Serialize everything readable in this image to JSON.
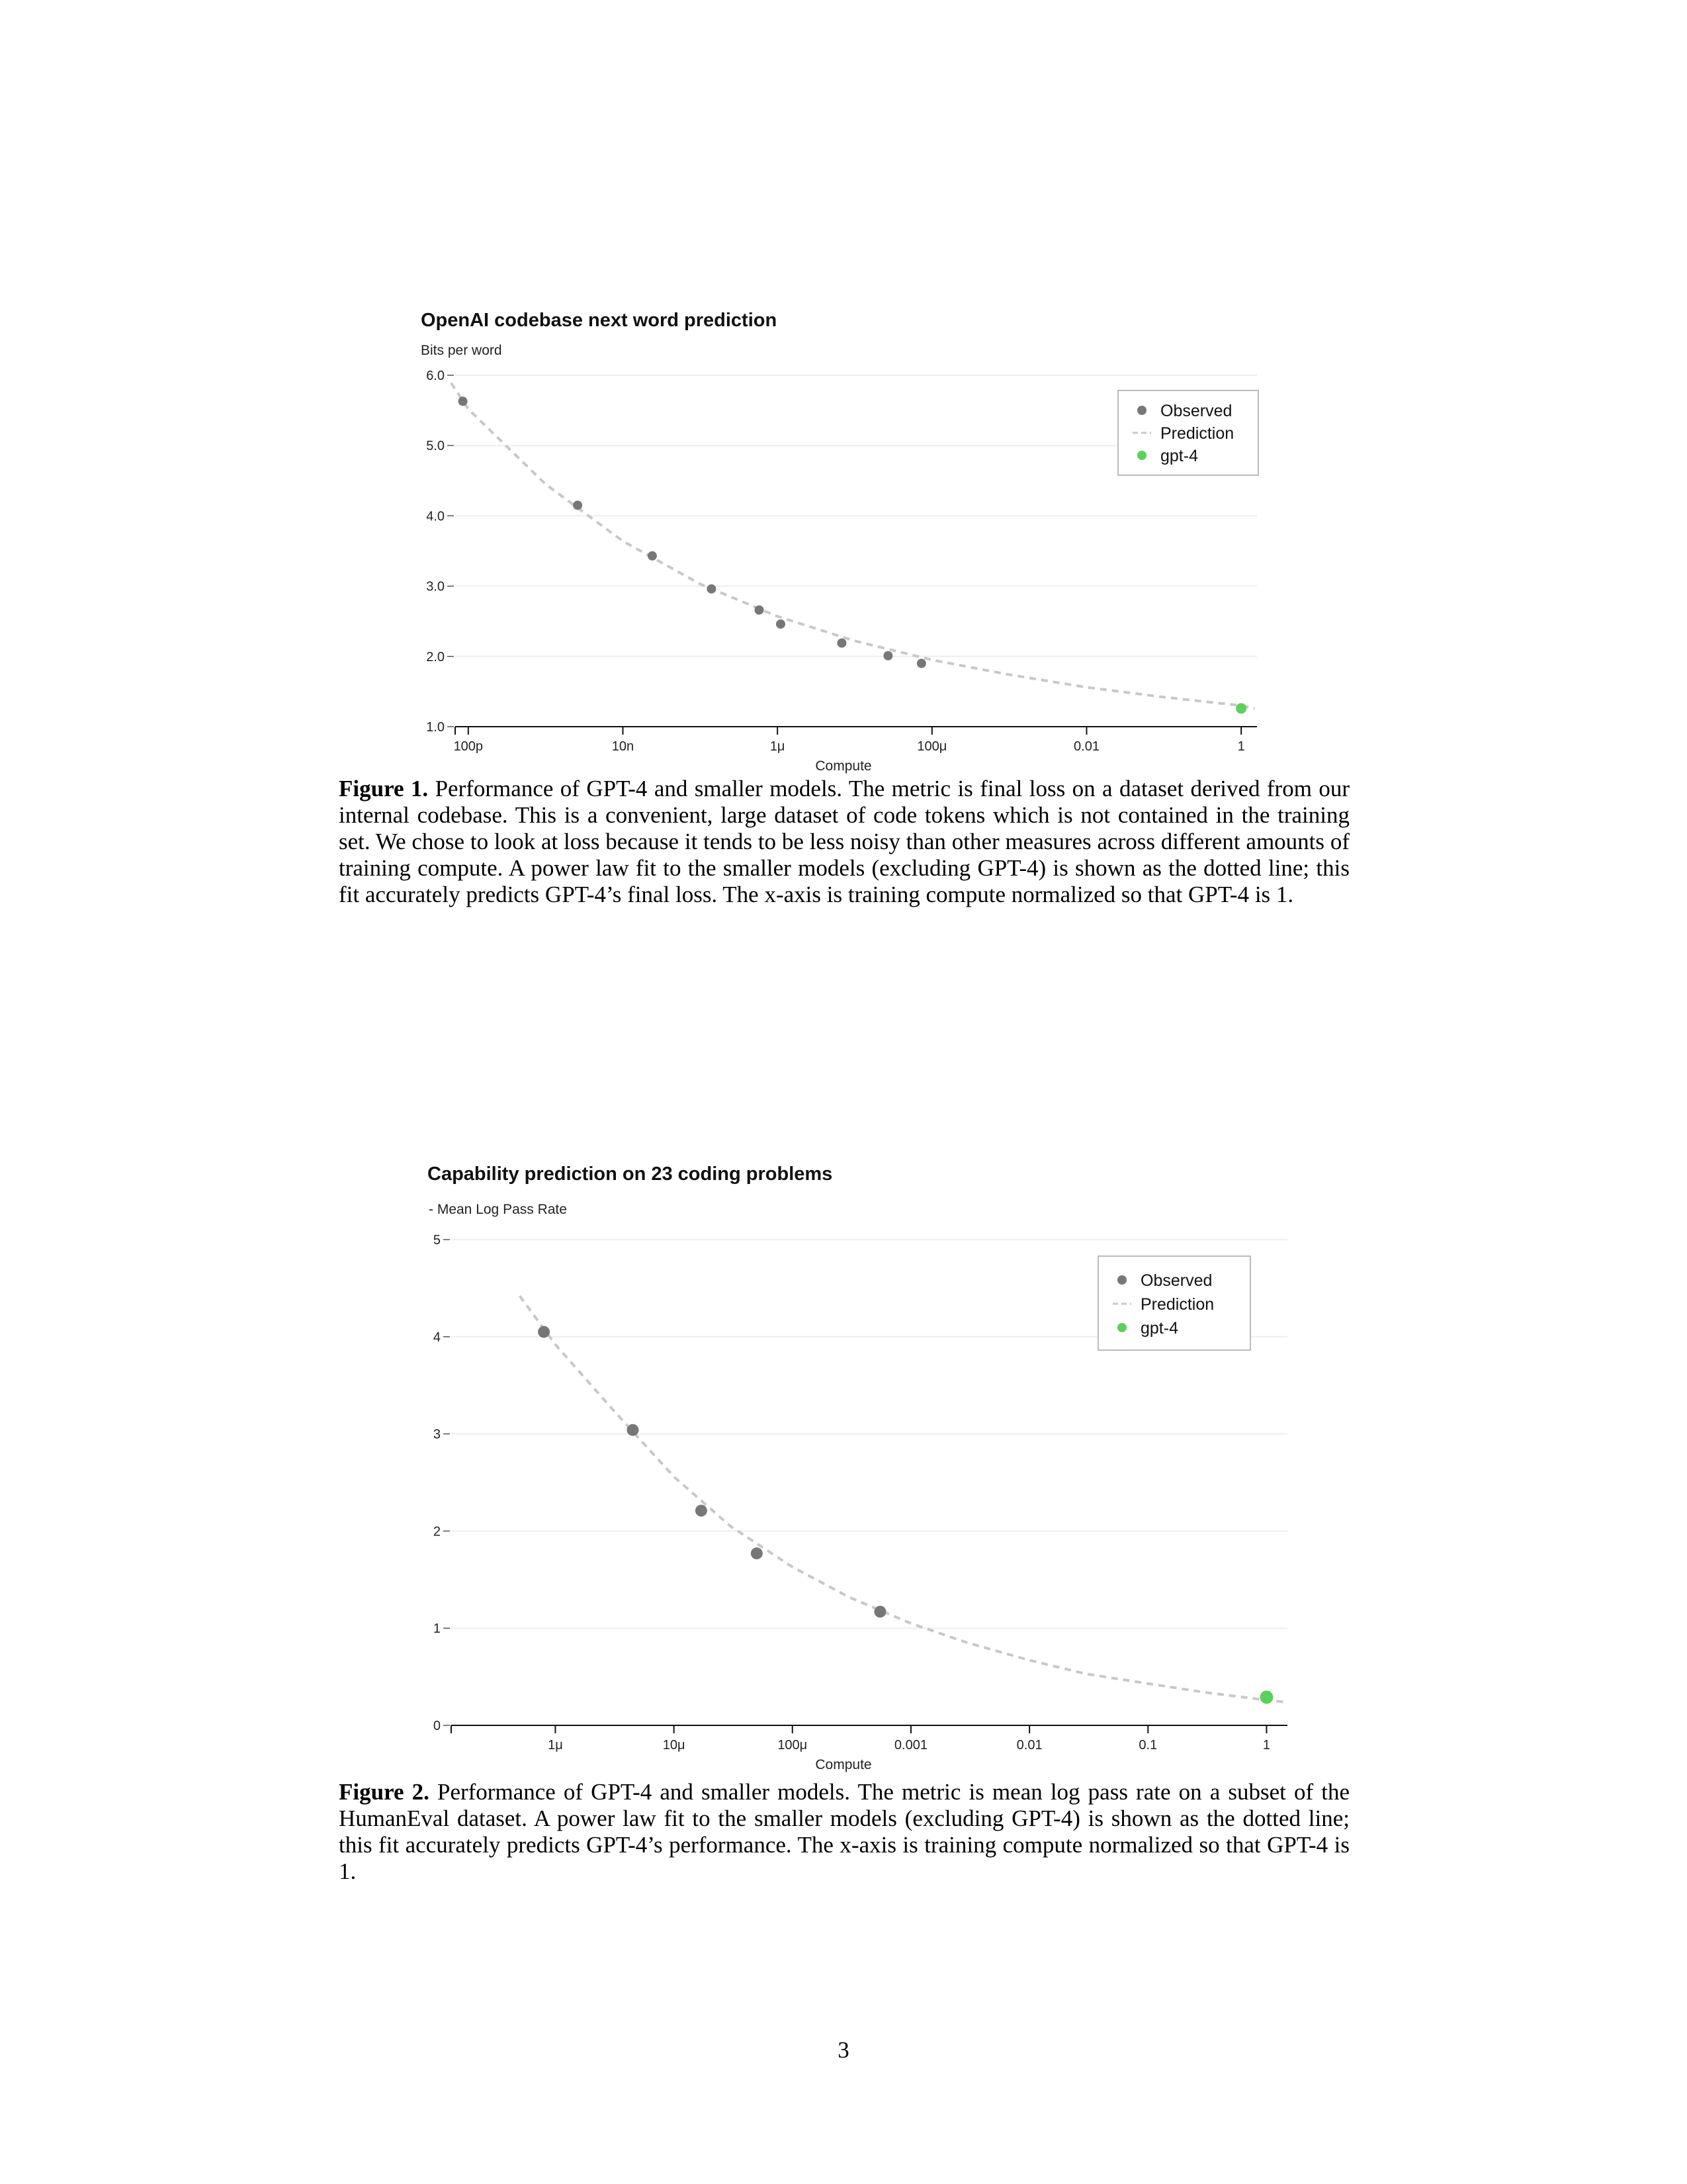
{
  "figures": [
    {
      "caption_label": "Figure 1.",
      "caption_text": "Performance of GPT-4 and smaller models. The metric is final loss on a dataset derived from our internal codebase. This is a convenient, large dataset of code tokens which is not contained in the training set. We chose to look at loss because it tends to be less noisy than other measures across different amounts of training compute. A power law fit to the smaller models (excluding GPT-4) is shown as the dotted line; this fit accurately predicts GPT-4’s final loss. The x-axis is training compute normalized so that GPT-4 is 1."
    },
    {
      "caption_label": "Figure 2.",
      "caption_text": "Performance of GPT-4 and smaller models. The metric is mean log pass rate on a subset of the HumanEval dataset. A power law fit to the smaller models (excluding GPT-4) is shown as the dotted line; this fit accurately predicts GPT-4’s performance. The x-axis is training compute normalized so that GPT-4 is 1."
    }
  ],
  "page_number": "3",
  "colors": {
    "observed": "#777777",
    "prediction": "#c8c8c8",
    "gpt4": "#5ad15a",
    "grid": "#eeeeee"
  },
  "chart_data": [
    {
      "type": "scatter",
      "title": "OpenAI codebase next word prediction",
      "ylabel": "Bits per word",
      "xlabel": "Compute",
      "x_scale": "log",
      "xlim": [
        3.2e-11,
        1.6
      ],
      "ylim": [
        1.0,
        6.0
      ],
      "x_ticks": [
        {
          "value": 1e-10,
          "label": "100p"
        },
        {
          "value": 1e-08,
          "label": "10n"
        },
        {
          "value": 1e-06,
          "label": "1μ"
        },
        {
          "value": 0.0001,
          "label": "100μ"
        },
        {
          "value": 0.01,
          "label": "0.01"
        },
        {
          "value": 1,
          "label": "1"
        }
      ],
      "y_ticks": [
        {
          "value": 1.0,
          "label": "1.0"
        },
        {
          "value": 2.0,
          "label": "2.0"
        },
        {
          "value": 3.0,
          "label": "3.0"
        },
        {
          "value": 4.0,
          "label": "4.0"
        },
        {
          "value": 5.0,
          "label": "5.0"
        },
        {
          "value": 6.0,
          "label": "6.0"
        }
      ],
      "legend": {
        "position": "top-right",
        "entries": [
          "Observed",
          "Prediction",
          "gpt-4"
        ]
      },
      "series": [
        {
          "name": "Observed",
          "kind": "points",
          "points": [
            {
              "x": 8.5e-11,
              "y": 5.63
            },
            {
              "x": 2.6e-09,
              "y": 4.15
            },
            {
              "x": 2.4e-08,
              "y": 3.43
            },
            {
              "x": 1.4e-07,
              "y": 2.96
            },
            {
              "x": 5.8e-07,
              "y": 2.66
            },
            {
              "x": 1.1e-06,
              "y": 2.46
            },
            {
              "x": 6.8e-06,
              "y": 2.19
            },
            {
              "x": 2.7e-05,
              "y": 2.01
            },
            {
              "x": 7.3e-05,
              "y": 1.9
            }
          ]
        },
        {
          "name": "Prediction",
          "kind": "line",
          "points": [
            {
              "x": 6e-11,
              "y": 5.89
            },
            {
              "x": 1e-10,
              "y": 5.52
            },
            {
              "x": 1e-09,
              "y": 4.45
            },
            {
              "x": 1e-08,
              "y": 3.64
            },
            {
              "x": 1e-07,
              "y": 3.03
            },
            {
              "x": 1e-06,
              "y": 2.57
            },
            {
              "x": 1e-05,
              "y": 2.22
            },
            {
              "x": 0.0001,
              "y": 1.95
            },
            {
              "x": 0.001,
              "y": 1.74
            },
            {
              "x": 0.01,
              "y": 1.56
            },
            {
              "x": 0.1,
              "y": 1.42
            },
            {
              "x": 1,
              "y": 1.3
            },
            {
              "x": 1.5,
              "y": 1.26
            }
          ]
        },
        {
          "name": "gpt-4",
          "kind": "points",
          "points": [
            {
              "x": 1,
              "y": 1.26
            }
          ]
        }
      ]
    },
    {
      "type": "scatter",
      "title": "Capability prediction on 23 coding problems",
      "ylabel": "- Mean Log Pass Rate",
      "xlabel": "Compute",
      "x_scale": "log",
      "xlim": [
        1.8e-07,
        1.5
      ],
      "ylim": [
        0,
        5
      ],
      "x_ticks": [
        {
          "value": 1e-06,
          "label": "1μ"
        },
        {
          "value": 1e-05,
          "label": "10μ"
        },
        {
          "value": 0.0001,
          "label": "100μ"
        },
        {
          "value": 0.001,
          "label": "0.001"
        },
        {
          "value": 0.01,
          "label": "0.01"
        },
        {
          "value": 0.1,
          "label": "0.1"
        },
        {
          "value": 1,
          "label": "1"
        }
      ],
      "y_ticks": [
        {
          "value": 0,
          "label": "0"
        },
        {
          "value": 1,
          "label": "1"
        },
        {
          "value": 2,
          "label": "2"
        },
        {
          "value": 3,
          "label": "3"
        },
        {
          "value": 4,
          "label": "4"
        },
        {
          "value": 5,
          "label": "5"
        }
      ],
      "legend": {
        "position": "top-right",
        "entries": [
          "Observed",
          "Prediction",
          "gpt-4"
        ]
      },
      "series": [
        {
          "name": "Observed",
          "kind": "points",
          "points": [
            {
              "x": 8e-07,
              "y": 4.05
            },
            {
              "x": 4.5e-06,
              "y": 3.04
            },
            {
              "x": 1.7e-05,
              "y": 2.21
            },
            {
              "x": 5e-05,
              "y": 1.77
            },
            {
              "x": 0.00055,
              "y": 1.17
            }
          ]
        },
        {
          "name": "Prediction",
          "kind": "line",
          "points": [
            {
              "x": 5e-07,
              "y": 4.42
            },
            {
              "x": 1e-06,
              "y": 3.92
            },
            {
              "x": 3e-06,
              "y": 3.26
            },
            {
              "x": 1e-05,
              "y": 2.56
            },
            {
              "x": 3e-05,
              "y": 2.05
            },
            {
              "x": 0.0001,
              "y": 1.63
            },
            {
              "x": 0.0003,
              "y": 1.32
            },
            {
              "x": 0.001,
              "y": 1.05
            },
            {
              "x": 0.003,
              "y": 0.85
            },
            {
              "x": 0.01,
              "y": 0.67
            },
            {
              "x": 0.03,
              "y": 0.53
            },
            {
              "x": 0.1,
              "y": 0.43
            },
            {
              "x": 0.3,
              "y": 0.34
            },
            {
              "x": 1,
              "y": 0.26
            },
            {
              "x": 1.45,
              "y": 0.24
            }
          ]
        },
        {
          "name": "gpt-4",
          "kind": "points",
          "points": [
            {
              "x": 1,
              "y": 0.29
            }
          ]
        }
      ]
    }
  ]
}
